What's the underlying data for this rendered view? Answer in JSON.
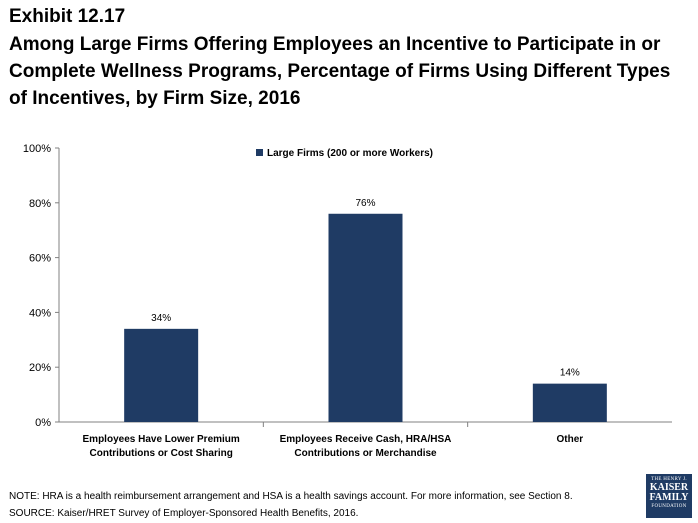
{
  "header": {
    "exhibit": "Exhibit 12.17",
    "title": "Among Large Firms Offering Employees an Incentive to Participate in or Complete Wellness Programs, Percentage of Firms Using Different Types of Incentives, by Firm Size, 2016"
  },
  "chart_data": {
    "type": "bar",
    "categories": [
      [
        "Employees Have Lower Premium",
        "Contributions or Cost Sharing"
      ],
      [
        "Employees Receive Cash, HRA/HSA",
        "Contributions or Merchandise"
      ],
      [
        "Other"
      ]
    ],
    "series": [
      {
        "name": "Large Firms (200 or more Workers)",
        "values": [
          34,
          76,
          14
        ],
        "color": "#1f3b64"
      }
    ],
    "data_labels": [
      "34%",
      "76%",
      "14%"
    ],
    "y_ticks": [
      "0%",
      "20%",
      "40%",
      "60%",
      "80%",
      "100%"
    ],
    "ylim": [
      0,
      100
    ],
    "grid": false,
    "legend_position": "top-center"
  },
  "footer": {
    "note": "NOTE: HRA is a health reimbursement arrangement and HSA is a health savings account. For more information, see Section 8.",
    "source": "SOURCE: Kaiser/HRET Survey of Employer-Sponsored Health Benefits, 2016."
  },
  "logo": {
    "line1": "THE HENRY J.",
    "line2": "KAISER",
    "line3": "FAMILY",
    "line4": "FOUNDATION"
  }
}
